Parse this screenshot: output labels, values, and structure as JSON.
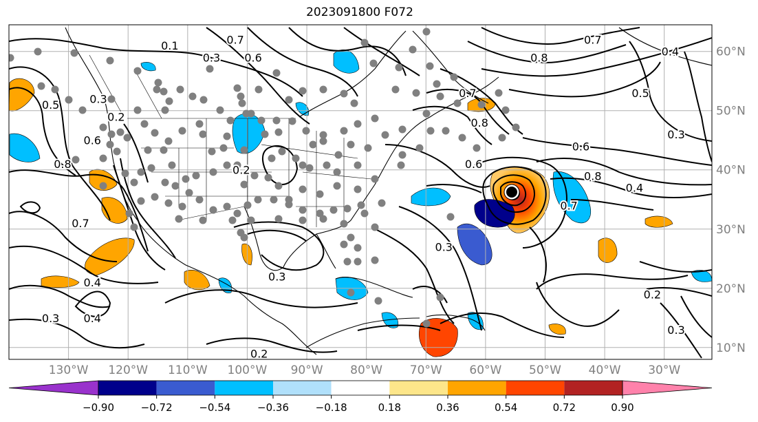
{
  "title": "2023091800 F072",
  "lon_ticks": [
    {
      "lon": -130,
      "label": "130°W"
    },
    {
      "lon": -120,
      "label": "120°W"
    },
    {
      "lon": -110,
      "label": "110°W"
    },
    {
      "lon": -100,
      "label": "100°W"
    },
    {
      "lon": -90,
      "label": "90°W"
    },
    {
      "lon": -80,
      "label": "80°W"
    },
    {
      "lon": -70,
      "label": "70°W"
    },
    {
      "lon": -60,
      "label": "60°W"
    },
    {
      "lon": -50,
      "label": "50°W"
    },
    {
      "lon": -40,
      "label": "40°W"
    },
    {
      "lon": -30,
      "label": "30°W"
    }
  ],
  "lat_ticks": [
    {
      "lat": 60,
      "label": "60°N"
    },
    {
      "lat": 50,
      "label": "50°N"
    },
    {
      "lat": 40,
      "label": "40°N"
    },
    {
      "lat": 30,
      "label": "30°N"
    },
    {
      "lat": 20,
      "label": "20°N"
    },
    {
      "lat": 10,
      "label": "10°N"
    }
  ],
  "colorbar": {
    "ticks": [
      "−0.90",
      "−0.72",
      "−0.54",
      "−0.36",
      "−0.18",
      "0.18",
      "0.36",
      "0.54",
      "0.72",
      "0.90"
    ],
    "colors": {
      "extend_min": "#9932cc",
      "bins": [
        "#00008b",
        "#3a5bd0",
        "#00bfff",
        "#b0e0fb",
        "#ffffff",
        "#fde68a",
        "#ffa500",
        "#ff4500",
        "#b22222"
      ],
      "extend_max": "#ff82ab"
    }
  },
  "contour_labels": [
    {
      "text": "0.7",
      "lon": -102,
      "lat": 62
    },
    {
      "text": "0.6",
      "lon": -99,
      "lat": 59
    },
    {
      "text": "0.3",
      "lon": -106,
      "lat": 59
    },
    {
      "text": "0.1",
      "lon": -113,
      "lat": 61
    },
    {
      "text": "0.5",
      "lon": -133,
      "lat": 51
    },
    {
      "text": "0.3",
      "lon": -125,
      "lat": 52
    },
    {
      "text": "0.2",
      "lon": -122,
      "lat": 49
    },
    {
      "text": "0.6",
      "lon": -126,
      "lat": 45
    },
    {
      "text": "0.8",
      "lon": -131,
      "lat": 41
    },
    {
      "text": "0.7",
      "lon": -128,
      "lat": 31
    },
    {
      "text": "0.4",
      "lon": -126,
      "lat": 21
    },
    {
      "text": "0.3",
      "lon": -133,
      "lat": 15
    },
    {
      "text": "0.4",
      "lon": -126,
      "lat": 15
    },
    {
      "text": "0.2",
      "lon": -101,
      "lat": 40
    },
    {
      "text": "0.3",
      "lon": -95,
      "lat": 22
    },
    {
      "text": "0.2",
      "lon": -98,
      "lat": 9
    },
    {
      "text": "0.8",
      "lon": -51,
      "lat": 59
    },
    {
      "text": "0.7",
      "lon": -42,
      "lat": 62
    },
    {
      "text": "0.4",
      "lon": -29,
      "lat": 60
    },
    {
      "text": "0.5",
      "lon": -34,
      "lat": 53
    },
    {
      "text": "0.3",
      "lon": -28,
      "lat": 46
    },
    {
      "text": "0.6",
      "lon": -44,
      "lat": 44
    },
    {
      "text": "0.8",
      "lon": -42,
      "lat": 39
    },
    {
      "text": "0.4",
      "lon": -35,
      "lat": 37
    },
    {
      "text": "0.7",
      "lon": -46,
      "lat": 34
    },
    {
      "text": "0.6",
      "lon": -62,
      "lat": 41
    },
    {
      "text": "0.8",
      "lon": -61,
      "lat": 48
    },
    {
      "text": "0.7",
      "lon": -63,
      "lat": 53
    },
    {
      "text": "0.3",
      "lon": -67,
      "lat": 27
    },
    {
      "text": "0.2",
      "lon": -32,
      "lat": 19
    },
    {
      "text": "0.3",
      "lon": -28,
      "lat": 13
    }
  ]
}
